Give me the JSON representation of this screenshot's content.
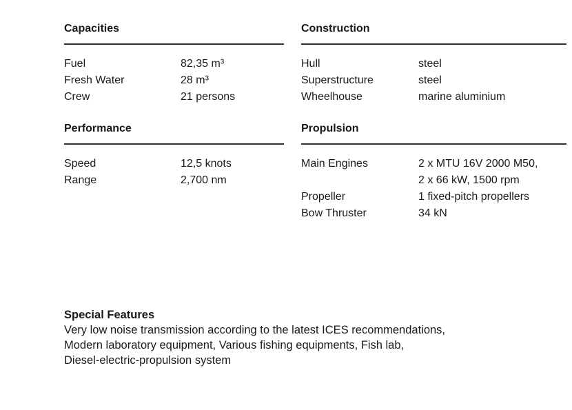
{
  "colors": {
    "background": "#ffffff",
    "text": "#1a1a1a",
    "rule": "#2f2f2f"
  },
  "sections": {
    "capacities": {
      "title": "Capacities",
      "rows": [
        {
          "label": "Fuel",
          "value": "82,35 m³"
        },
        {
          "label": "Fresh Water",
          "value": "28 m³"
        },
        {
          "label": "Crew",
          "value": "21 persons"
        }
      ]
    },
    "construction": {
      "title": "Construction",
      "rows": [
        {
          "label": "Hull",
          "value": "steel"
        },
        {
          "label": "Superstructure",
          "value": "steel"
        },
        {
          "label": "Wheelhouse",
          "value": "marine aluminium"
        }
      ]
    },
    "performance": {
      "title": "Performance",
      "rows": [
        {
          "label": "Speed",
          "value": "12,5 knots"
        },
        {
          "label": "Range",
          "value": "2,700 nm"
        }
      ]
    },
    "propulsion": {
      "title": "Propulsion",
      "rows": [
        {
          "label": "Main Engines",
          "value": "2 x MTU 16V 2000 M50,\n2 x 66 kW, 1500 rpm"
        },
        {
          "label": "Propeller",
          "value": "1 fixed-pitch propellers"
        },
        {
          "label": "Bow Thruster",
          "value": "34 kN"
        }
      ]
    },
    "special_features": {
      "title": "Special Features",
      "body": "Very low noise transmission according to the latest ICES recommendations,\nModern laboratory equipment, Various fishing equipments, Fish lab,\nDiesel-electric-propulsion system"
    }
  }
}
